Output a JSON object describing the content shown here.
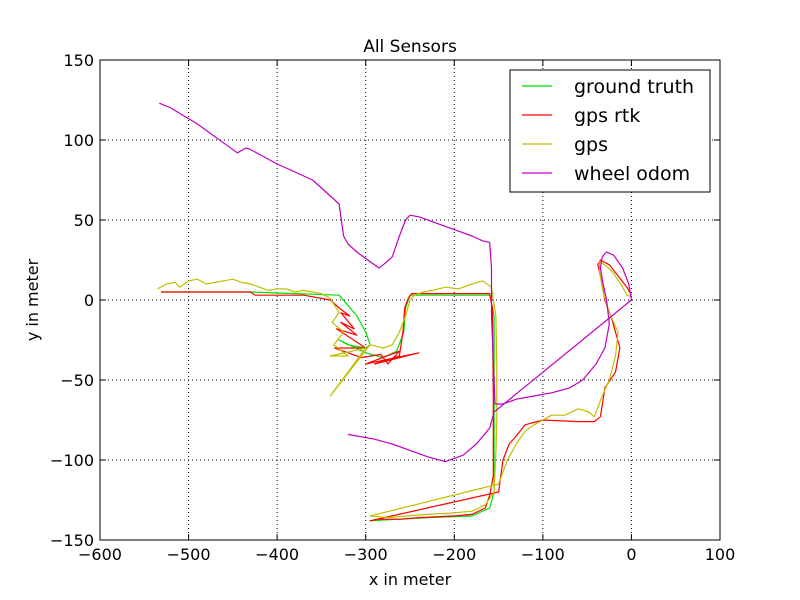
{
  "chart_data": {
    "type": "line",
    "title": "All Sensors",
    "xlabel": "x in meter",
    "ylabel": "y in meter",
    "xlim": [
      -600,
      100
    ],
    "ylim": [
      -150,
      150
    ],
    "xticks": [
      -600,
      -500,
      -400,
      -300,
      -200,
      -100,
      0,
      100
    ],
    "yticks": [
      -150,
      -100,
      -50,
      0,
      50,
      100,
      150
    ],
    "xtick_labels": [
      "−600",
      "−500",
      "−400",
      "−300",
      "−200",
      "−100",
      "0",
      "100"
    ],
    "ytick_labels": [
      "−150",
      "−100",
      "−50",
      "0",
      "50",
      "100",
      "150"
    ],
    "grid": true,
    "legend_position": "top-right",
    "series": [
      {
        "name": "ground truth",
        "color": "#00e000",
        "points": [
          [
            -531,
            5
          ],
          [
            -480,
            5
          ],
          [
            -430,
            5
          ],
          [
            -380,
            4
          ],
          [
            -330,
            3
          ],
          [
            -310,
            -10
          ],
          [
            -300,
            -20
          ],
          [
            -295,
            -28
          ],
          [
            -300,
            -30
          ],
          [
            -320,
            -28
          ],
          [
            -330,
            -25
          ],
          [
            -300,
            -33
          ],
          [
            -280,
            -36
          ],
          [
            -265,
            -32
          ],
          [
            -257,
            -20
          ],
          [
            -255,
            -5
          ],
          [
            -250,
            3
          ],
          [
            -220,
            3
          ],
          [
            -180,
            3
          ],
          [
            -160,
            3
          ],
          [
            -155,
            -10
          ],
          [
            -155,
            -60
          ],
          [
            -155,
            -100
          ],
          [
            -155,
            -120
          ],
          [
            -160,
            -130
          ],
          [
            -180,
            -135
          ],
          [
            -230,
            -136
          ],
          [
            -295,
            -138
          ]
        ]
      },
      {
        "name": "gps rtk",
        "color": "#ff0000",
        "points": [
          [
            -531,
            5
          ],
          [
            -500,
            5
          ],
          [
            -460,
            5
          ],
          [
            -430,
            5
          ],
          [
            -425,
            3
          ],
          [
            -400,
            3
          ],
          [
            -370,
            3
          ],
          [
            -340,
            0
          ],
          [
            -330,
            -5
          ],
          [
            -318,
            -10
          ],
          [
            -328,
            -8
          ],
          [
            -313,
            -18
          ],
          [
            -328,
            -14
          ],
          [
            -310,
            -22
          ],
          [
            -333,
            -18
          ],
          [
            -300,
            -30
          ],
          [
            -335,
            -30
          ],
          [
            -305,
            -36
          ],
          [
            -283,
            -34
          ],
          [
            -275,
            -40
          ],
          [
            -262,
            -32
          ],
          [
            -300,
            -40
          ],
          [
            -240,
            -33
          ],
          [
            -290,
            -40
          ],
          [
            -262,
            -35
          ],
          [
            -258,
            -20
          ],
          [
            -256,
            -5
          ],
          [
            -252,
            1
          ],
          [
            -248,
            4
          ],
          [
            -220,
            4
          ],
          [
            -190,
            4
          ],
          [
            -175,
            4
          ],
          [
            -160,
            4
          ],
          [
            -157,
            -5
          ],
          [
            -156,
            -60
          ],
          [
            -156,
            -110
          ],
          [
            -160,
            -122
          ],
          [
            -165,
            -130
          ],
          [
            -180,
            -134
          ],
          [
            -200,
            -135
          ],
          [
            -240,
            -136
          ],
          [
            -260,
            -137
          ],
          [
            -285,
            -137
          ],
          [
            -295,
            -138
          ],
          [
            -150,
            -120
          ],
          [
            -145,
            -100
          ],
          [
            -138,
            -90
          ],
          [
            -130,
            -85
          ],
          [
            -120,
            -78
          ],
          [
            -100,
            -75
          ],
          [
            -60,
            -76
          ],
          [
            -42,
            -76
          ],
          [
            -35,
            -73
          ],
          [
            -30,
            -55
          ],
          [
            -18,
            -45
          ],
          [
            -13,
            -30
          ],
          [
            -22,
            -12
          ],
          [
            -30,
            0
          ],
          [
            -35,
            15
          ],
          [
            -38,
            22
          ],
          [
            -35,
            25
          ],
          [
            -25,
            22
          ],
          [
            -15,
            15
          ],
          [
            -5,
            8
          ],
          [
            0,
            3
          ]
        ]
      },
      {
        "name": "gps",
        "color": "#bfbf00",
        "points": [
          [
            -535,
            7
          ],
          [
            -525,
            10
          ],
          [
            -515,
            11
          ],
          [
            -510,
            8
          ],
          [
            -500,
            12
          ],
          [
            -490,
            13
          ],
          [
            -480,
            10
          ],
          [
            -470,
            11
          ],
          [
            -460,
            12
          ],
          [
            -450,
            13
          ],
          [
            -440,
            11
          ],
          [
            -430,
            10
          ],
          [
            -420,
            8
          ],
          [
            -410,
            6
          ],
          [
            -400,
            7
          ],
          [
            -390,
            7
          ],
          [
            -380,
            5
          ],
          [
            -370,
            6
          ],
          [
            -360,
            5
          ],
          [
            -350,
            4
          ],
          [
            -340,
            1
          ],
          [
            -330,
            -8
          ],
          [
            -338,
            -14
          ],
          [
            -325,
            -20
          ],
          [
            -336,
            -28
          ],
          [
            -320,
            -35
          ],
          [
            -340,
            -35
          ],
          [
            -300,
            -30
          ],
          [
            -340,
            -60
          ],
          [
            -295,
            -28
          ],
          [
            -280,
            -30
          ],
          [
            -270,
            -28
          ],
          [
            -262,
            -20
          ],
          [
            -255,
            -10
          ],
          [
            -250,
            0
          ],
          [
            -245,
            3
          ],
          [
            -235,
            5
          ],
          [
            -225,
            6
          ],
          [
            -210,
            8
          ],
          [
            -195,
            7
          ],
          [
            -180,
            10
          ],
          [
            -168,
            12
          ],
          [
            -158,
            8
          ],
          [
            -153,
            -10
          ],
          [
            -152,
            -40
          ],
          [
            -152,
            -75
          ],
          [
            -153,
            -95
          ],
          [
            -155,
            -120
          ],
          [
            -165,
            -128
          ],
          [
            -180,
            -132
          ],
          [
            -200,
            -133
          ],
          [
            -230,
            -134
          ],
          [
            -255,
            -135
          ],
          [
            -275,
            -136
          ],
          [
            -295,
            -135
          ],
          [
            -150,
            -115
          ],
          [
            -140,
            -100
          ],
          [
            -130,
            -90
          ],
          [
            -120,
            -82
          ],
          [
            -110,
            -78
          ],
          [
            -90,
            -72
          ],
          [
            -75,
            -72
          ],
          [
            -60,
            -68
          ],
          [
            -48,
            -70
          ],
          [
            -42,
            -73
          ],
          [
            -33,
            -60
          ],
          [
            -25,
            -50
          ],
          [
            -18,
            -35
          ],
          [
            -15,
            -20
          ],
          [
            -25,
            -8
          ],
          [
            -32,
            5
          ],
          [
            -36,
            18
          ],
          [
            -36,
            24
          ],
          [
            -30,
            22
          ],
          [
            -22,
            18
          ],
          [
            -12,
            10
          ],
          [
            -5,
            3
          ],
          [
            0,
            2
          ]
        ]
      },
      {
        "name": "wheel odom",
        "color": "#c000c0",
        "points": [
          [
            -533,
            123
          ],
          [
            -520,
            120
          ],
          [
            -505,
            115
          ],
          [
            -490,
            110
          ],
          [
            -475,
            104
          ],
          [
            -460,
            98
          ],
          [
            -445,
            92
          ],
          [
            -435,
            95
          ],
          [
            -430,
            94
          ],
          [
            -420,
            91
          ],
          [
            -400,
            85
          ],
          [
            -380,
            80
          ],
          [
            -360,
            75
          ],
          [
            -340,
            65
          ],
          [
            -330,
            60
          ],
          [
            -325,
            40
          ],
          [
            -320,
            35
          ],
          [
            -310,
            30
          ],
          [
            -295,
            24
          ],
          [
            -285,
            20
          ],
          [
            -278,
            23
          ],
          [
            -270,
            27
          ],
          [
            -262,
            40
          ],
          [
            -255,
            50
          ],
          [
            -250,
            53
          ],
          [
            -240,
            52
          ],
          [
            -225,
            49
          ],
          [
            -210,
            46
          ],
          [
            -195,
            43
          ],
          [
            -180,
            40
          ],
          [
            -168,
            37
          ],
          [
            -160,
            36
          ],
          [
            -158,
            20
          ],
          [
            -158,
            -10
          ],
          [
            -155,
            -50
          ],
          [
            -154,
            -65
          ],
          [
            -145,
            -65
          ],
          [
            -130,
            -62
          ],
          [
            -110,
            -60
          ],
          [
            -90,
            -58
          ],
          [
            -70,
            -55
          ],
          [
            -55,
            -50
          ],
          [
            -40,
            -40
          ],
          [
            -30,
            -30
          ],
          [
            -25,
            -15
          ],
          [
            -28,
            0
          ],
          [
            -32,
            10
          ],
          [
            -35,
            20
          ],
          [
            -33,
            27
          ],
          [
            -28,
            30
          ],
          [
            -20,
            28
          ],
          [
            -10,
            20
          ],
          [
            -3,
            10
          ],
          [
            0,
            0
          ],
          [
            -155,
            -70
          ],
          [
            -160,
            -80
          ],
          [
            -175,
            -90
          ],
          [
            -190,
            -97
          ],
          [
            -210,
            -101
          ],
          [
            -230,
            -98
          ],
          [
            -250,
            -94
          ],
          [
            -270,
            -90
          ],
          [
            -290,
            -87
          ],
          [
            -310,
            -85
          ],
          [
            -320,
            -84
          ]
        ]
      }
    ]
  }
}
